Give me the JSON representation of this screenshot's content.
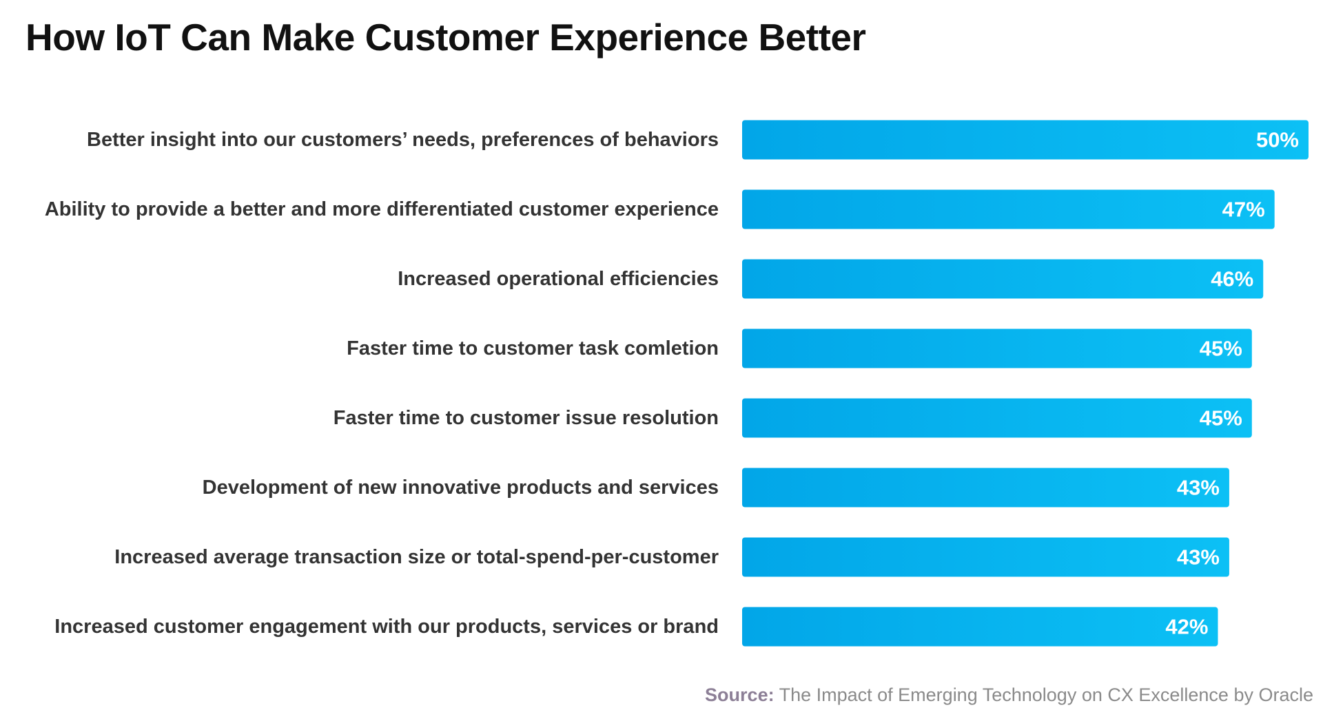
{
  "title": "How IoT Can Make Customer Experience Better",
  "source": {
    "lead": "Source:",
    "text": " The Impact of Emerging Technology on CX Excellence by Oracle"
  },
  "colors": {
    "bar_left": "#02a6e8",
    "bar_right": "#0cc0f5",
    "label_text": "#333333",
    "value_text": "#ffffff",
    "source_lead": "#8c7f96"
  },
  "chart_data": {
    "type": "bar",
    "orientation": "horizontal",
    "title": "How IoT Can Make Customer Experience Better",
    "categories": [
      "Better insight into our customers’ needs, preferences of behaviors",
      "Ability to provide a better and more differentiated customer experience",
      "Increased operational efficiencies",
      "Faster time to customer task comletion",
      "Faster time to customer issue resolution",
      "Development of new innovative products and services",
      "Increased average transaction size or total-spend-per-customer",
      "Increased customer engagement with our products, services or brand"
    ],
    "values": [
      50,
      47,
      46,
      45,
      45,
      43,
      43,
      42
    ],
    "value_labels": [
      "50%",
      "47%",
      "46%",
      "45%",
      "45%",
      "43%",
      "43%",
      "42%"
    ],
    "unit": "%",
    "xlabel": "",
    "ylabel": "",
    "grid": false,
    "legend": false
  }
}
